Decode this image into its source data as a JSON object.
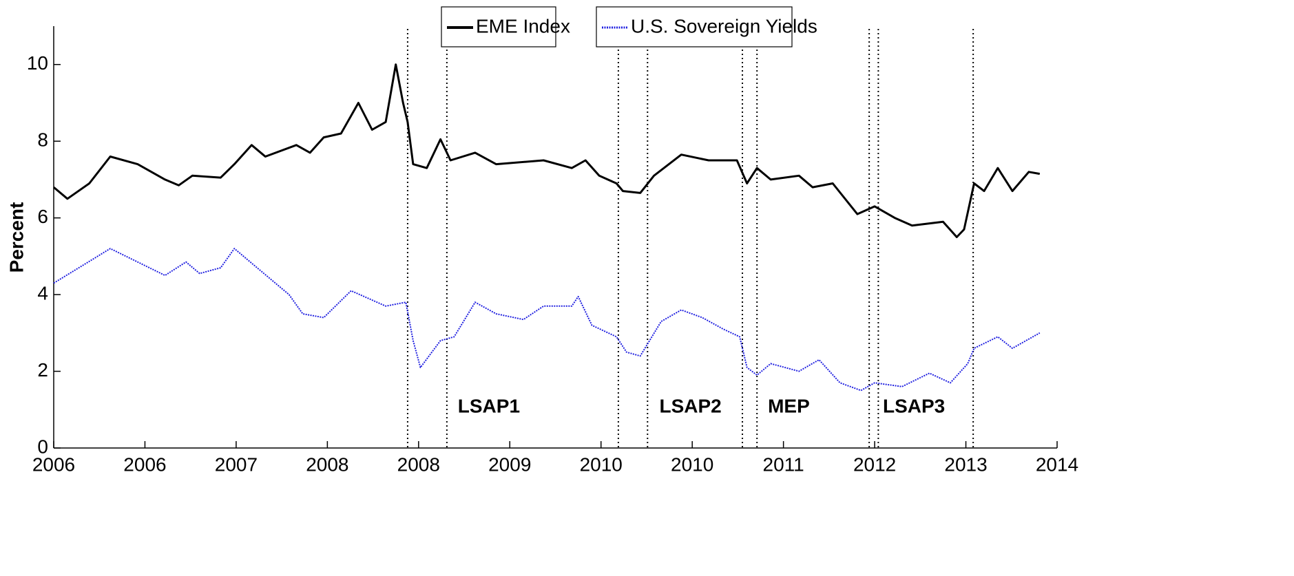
{
  "chart_data": {
    "type": "line",
    "ylabel": "Percent",
    "xlim": [
      0,
      11
    ],
    "xticks": [
      {
        "value": 0,
        "label": "2006"
      },
      {
        "value": 1,
        "label": "2006"
      },
      {
        "value": 2,
        "label": "2007"
      },
      {
        "value": 3,
        "label": "2008"
      },
      {
        "value": 4,
        "label": "2008"
      },
      {
        "value": 5,
        "label": "2009"
      },
      {
        "value": 6,
        "label": "2010"
      },
      {
        "value": 7,
        "label": "2010"
      },
      {
        "value": 8,
        "label": "2011"
      },
      {
        "value": 9,
        "label": "2012"
      },
      {
        "value": 10,
        "label": "2013"
      },
      {
        "value": 11,
        "label": "2014"
      }
    ],
    "ylim": [
      0,
      11
    ],
    "yticks": [
      0,
      2,
      4,
      6,
      8,
      10
    ],
    "legend": "top",
    "series": [
      {
        "name": "EME Index",
        "color": "#000000",
        "style": "solid",
        "x": [
          0,
          0.15,
          0.39,
          0.62,
          0.92,
          1.22,
          1.37,
          1.52,
          1.83,
          1.98,
          2.17,
          2.32,
          2.66,
          2.81,
          2.96,
          3.15,
          3.34,
          3.49,
          3.64,
          3.75,
          3.83,
          3.88,
          3.94,
          4.09,
          4.24,
          4.35,
          4.62,
          4.85,
          5.37,
          5.68,
          5.83,
          5.98,
          6.17,
          6.24,
          6.43,
          6.58,
          6.88,
          7.18,
          7.49,
          7.6,
          7.71,
          7.86,
          8.17,
          8.32,
          8.54,
          8.81,
          9.0,
          9.22,
          9.41,
          9.75,
          9.9,
          9.98,
          10.09,
          10.2,
          10.35,
          10.51,
          10.69,
          10.81
        ],
        "values": [
          6.8,
          6.5,
          6.9,
          7.6,
          7.4,
          7.0,
          6.85,
          7.1,
          7.05,
          7.4,
          7.9,
          7.6,
          7.9,
          7.7,
          8.1,
          8.2,
          9.0,
          8.3,
          8.5,
          10.0,
          9.0,
          8.5,
          7.4,
          7.3,
          8.05,
          7.5,
          7.7,
          7.4,
          7.5,
          7.3,
          7.5,
          7.1,
          6.9,
          6.7,
          6.65,
          7.1,
          7.65,
          7.5,
          7.5,
          6.9,
          7.3,
          7.0,
          7.1,
          6.8,
          6.9,
          6.1,
          6.3,
          6.0,
          5.8,
          5.9,
          5.5,
          5.7,
          6.9,
          6.7,
          7.3,
          6.7,
          7.2,
          7.15
        ]
      },
      {
        "name": "U.S. Sovereign Yields",
        "color": "#1f1fe0",
        "style": "dotted",
        "x": [
          0,
          0.62,
          1.22,
          1.45,
          1.6,
          1.83,
          1.98,
          2.28,
          2.58,
          2.73,
          2.96,
          3.26,
          3.64,
          3.86,
          3.94,
          4.02,
          4.24,
          4.39,
          4.62,
          4.85,
          5.15,
          5.37,
          5.68,
          5.75,
          5.9,
          6.17,
          6.28,
          6.43,
          6.66,
          6.88,
          7.11,
          7.34,
          7.52,
          7.6,
          7.71,
          7.86,
          8.17,
          8.39,
          8.62,
          8.85,
          9.0,
          9.3,
          9.6,
          9.83,
          10.02,
          10.09,
          10.35,
          10.51,
          10.81
        ],
        "values": [
          4.3,
          5.2,
          4.5,
          4.85,
          4.55,
          4.7,
          5.2,
          4.6,
          4.0,
          3.5,
          3.4,
          4.1,
          3.7,
          3.8,
          2.8,
          2.1,
          2.8,
          2.9,
          3.8,
          3.5,
          3.35,
          3.7,
          3.7,
          3.95,
          3.2,
          2.9,
          2.5,
          2.4,
          3.3,
          3.6,
          3.4,
          3.1,
          2.9,
          2.1,
          1.9,
          2.2,
          2.0,
          2.3,
          1.7,
          1.5,
          1.7,
          1.6,
          1.95,
          1.7,
          2.2,
          2.6,
          2.9,
          2.6,
          3.0
        ]
      }
    ],
    "events": [
      3.88,
      4.31,
      6.19,
      6.51,
      7.55,
      7.71,
      8.94,
      9.04,
      10.08
    ],
    "annotations": [
      {
        "text": "LSAP1",
        "x": 4.43,
        "y": 1.06
      },
      {
        "text": "LSAP2",
        "x": 6.64,
        "y": 1.06
      },
      {
        "text": "MEP",
        "x": 7.83,
        "y": 1.06
      },
      {
        "text": "LSAP3",
        "x": 9.09,
        "y": 1.06
      }
    ]
  }
}
